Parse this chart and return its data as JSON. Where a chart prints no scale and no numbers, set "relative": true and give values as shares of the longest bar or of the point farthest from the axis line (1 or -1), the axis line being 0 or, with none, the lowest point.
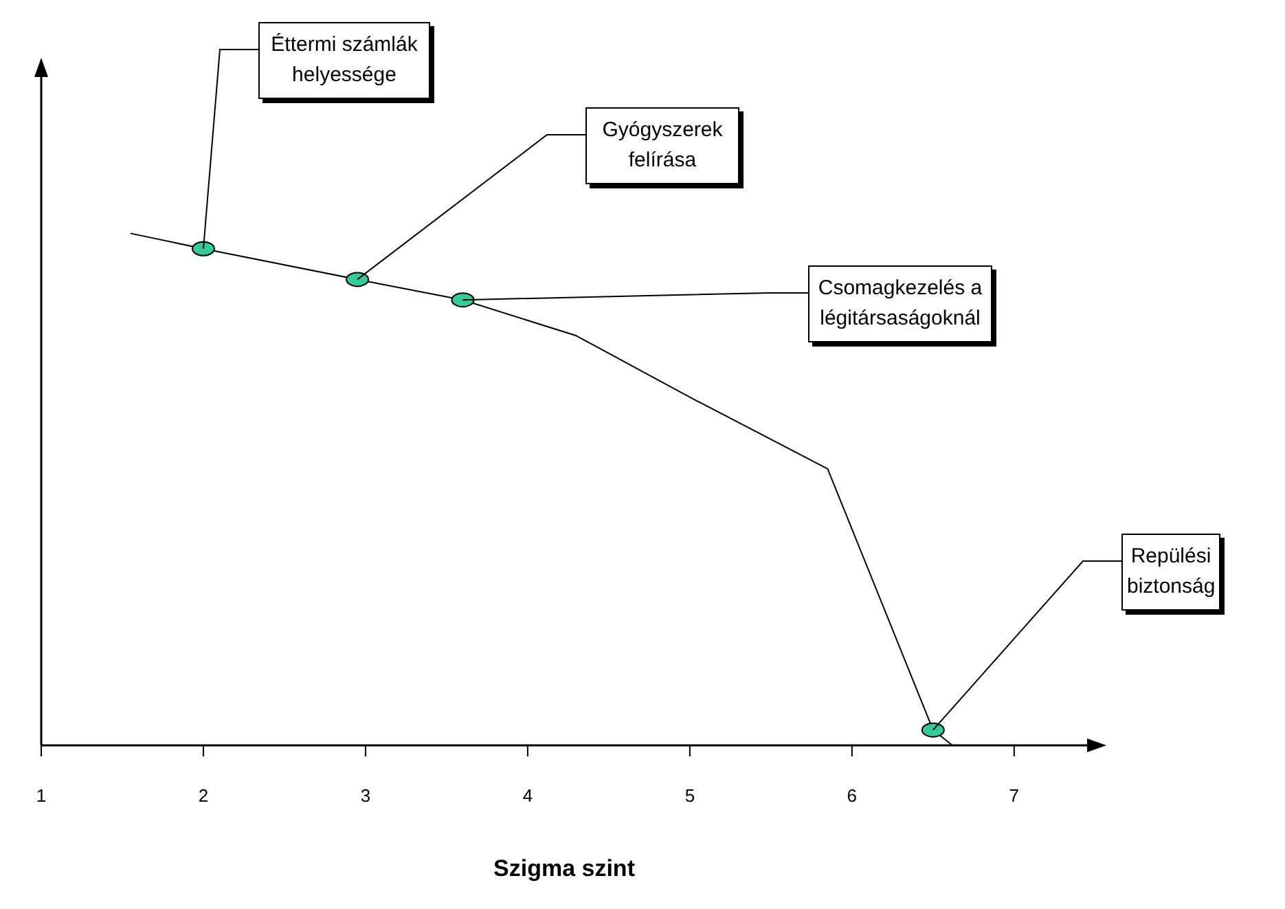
{
  "chart_data": {
    "type": "line",
    "xlabel": "Szigma szint",
    "relative": true,
    "xlim": [
      1,
      7.45
    ],
    "xticks": [
      1,
      2,
      3,
      4,
      5,
      6,
      7
    ],
    "marker": "none",
    "series": [
      {
        "color": "#000000",
        "x": [
          1.55,
          2,
          2.95,
          3.6,
          4.3,
          5,
          5.85,
          6.5,
          6.62
        ],
        "values": [
          1,
          0.97,
          0.91,
          0.87,
          0.8,
          0.68,
          0.54,
          0.03,
          0
        ]
      },
      {
        "type": "scatter",
        "color": "#33cc99",
        "marker": "circle",
        "x": [
          2,
          2.95,
          3.6,
          6.5
        ],
        "values": [
          0.97,
          0.91,
          0.87,
          0.03
        ]
      }
    ],
    "annotations": [
      {
        "text": "Éttermi számlák helyessége",
        "x": 2,
        "y": 0.97
      },
      {
        "text": "Gyógyszerek felírása",
        "x": 2.95,
        "y": 0.91
      },
      {
        "text": "Csomagkezelés a légitársaságoknál",
        "x": 3.6,
        "y": 0.87
      },
      {
        "text": "Repülési biztonság",
        "x": 6.5,
        "y": 0.03
      }
    ]
  }
}
